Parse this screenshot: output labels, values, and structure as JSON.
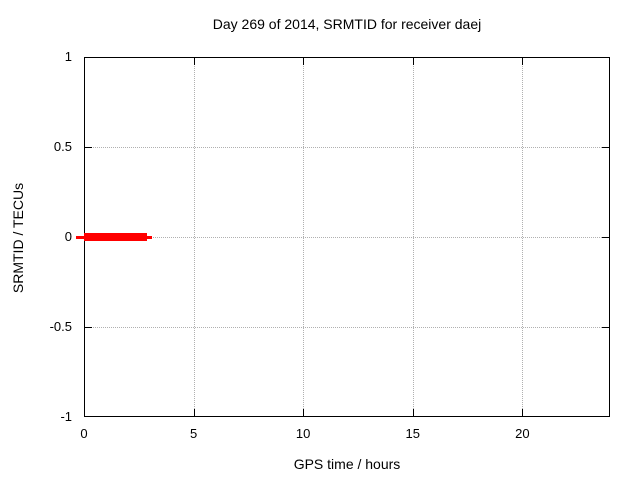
{
  "chart_data": {
    "type": "line",
    "title": "Day 269 of 2014, SRMTID for receiver daej",
    "xlabel": "GPS time / hours",
    "ylabel": "SRMTID / TECUs",
    "xlim": [
      0,
      24
    ],
    "ylim": [
      -1,
      1
    ],
    "xticks": [
      {
        "label": "0",
        "value": 0
      },
      {
        "label": "5",
        "value": 5
      },
      {
        "label": "10",
        "value": 10
      },
      {
        "label": "15",
        "value": 15
      },
      {
        "label": "20",
        "value": 20
      }
    ],
    "yticks": [
      {
        "label": "1",
        "value": 1
      },
      {
        "label": "0.5",
        "value": 0.5
      },
      {
        "label": "0",
        "value": 0
      },
      {
        "label": "-0.5",
        "value": -0.5
      },
      {
        "label": "-1",
        "value": -1
      }
    ],
    "grid": "dotted",
    "legend": "none",
    "colors": {
      "background": "#ffffff",
      "border": "#000000",
      "grid": "#b0b0b0",
      "series": "#ff0000",
      "text": "#000000"
    },
    "series": [
      {
        "name": "SRMTID",
        "color": "#ff0000",
        "x": [
          0,
          2.87
        ],
        "y": [
          0,
          0
        ],
        "style": "thick-segment",
        "thickness_px": 8
      }
    ],
    "underlay_segment": {
      "color": "#ff0000",
      "x": [
        -0.35,
        3.1
      ],
      "y": 0,
      "thickness_px": 3
    }
  }
}
